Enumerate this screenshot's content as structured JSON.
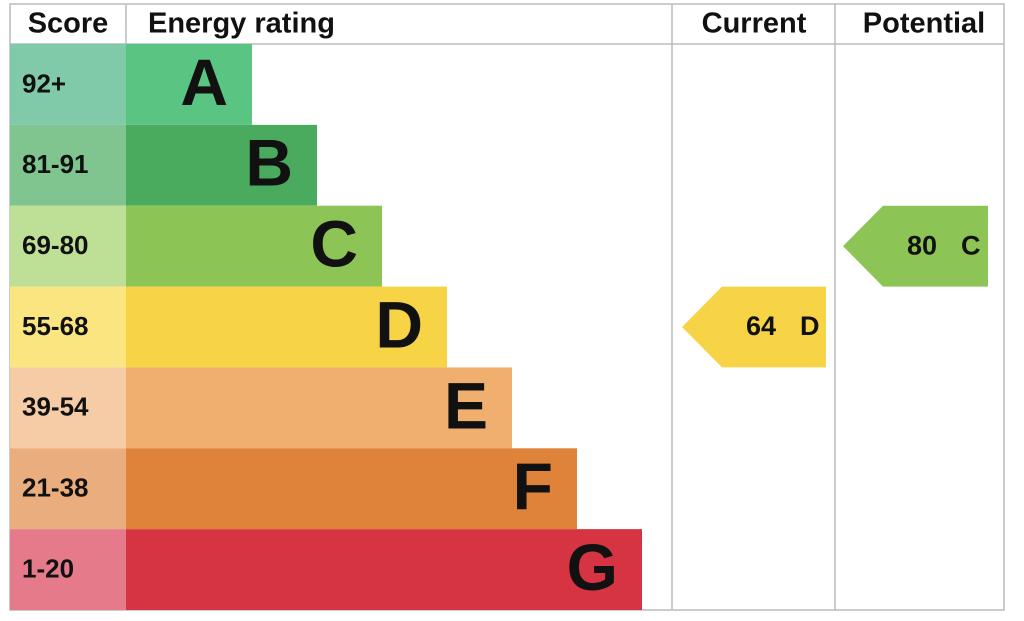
{
  "header": {
    "score": "Score",
    "rating": "Energy rating",
    "current": "Current",
    "potential": "Potential"
  },
  "bands": [
    {
      "score": "92+",
      "letter": "A",
      "color": "#5ac583",
      "score_color": "#80c9a9"
    },
    {
      "score": "81-91",
      "letter": "B",
      "color": "#4aaa5d",
      "score_color": "#80c48f"
    },
    {
      "score": "69-80",
      "letter": "C",
      "color": "#8dc456",
      "score_color": "#bde096"
    },
    {
      "score": "55-68",
      "letter": "D",
      "color": "#f6d446",
      "score_color": "#fbe580"
    },
    {
      "score": "39-54",
      "letter": "E",
      "color": "#f0ae6f",
      "score_color": "#f5cca6"
    },
    {
      "score": "21-38",
      "letter": "F",
      "color": "#e0833a",
      "score_color": "#eaae7e"
    },
    {
      "score": "1-20",
      "letter": "G",
      "color": "#d63442",
      "score_color": "#e47a8a"
    }
  ],
  "current": {
    "value": 64,
    "letter": "D",
    "color": "#f6d446"
  },
  "potential": {
    "value": 80,
    "letter": "C",
    "color": "#8dc456"
  }
}
